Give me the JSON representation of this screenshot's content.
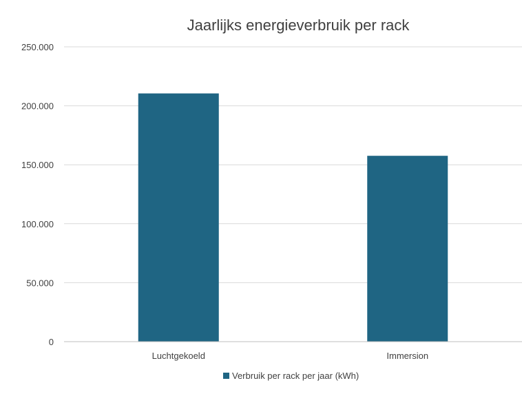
{
  "chart_data": {
    "type": "bar",
    "title": "Jaarlijks energieverbruik per rack",
    "xlabel": "",
    "ylabel": "",
    "categories": [
      "Luchtgekoeld",
      "Immersion"
    ],
    "series": [
      {
        "name": "Verbruik per rack per jaar (kWh)",
        "values": [
          210500,
          157600
        ]
      }
    ],
    "ylim": [
      0,
      250000
    ],
    "yticks": [
      0,
      50000,
      100000,
      150000,
      200000,
      250000
    ],
    "ytick_labels": [
      "0",
      "50.000",
      "100.000",
      "150.000",
      "200.000",
      "250.000"
    ],
    "grid": true,
    "legend_position": "bottom",
    "bar_color": "#1f6583"
  }
}
